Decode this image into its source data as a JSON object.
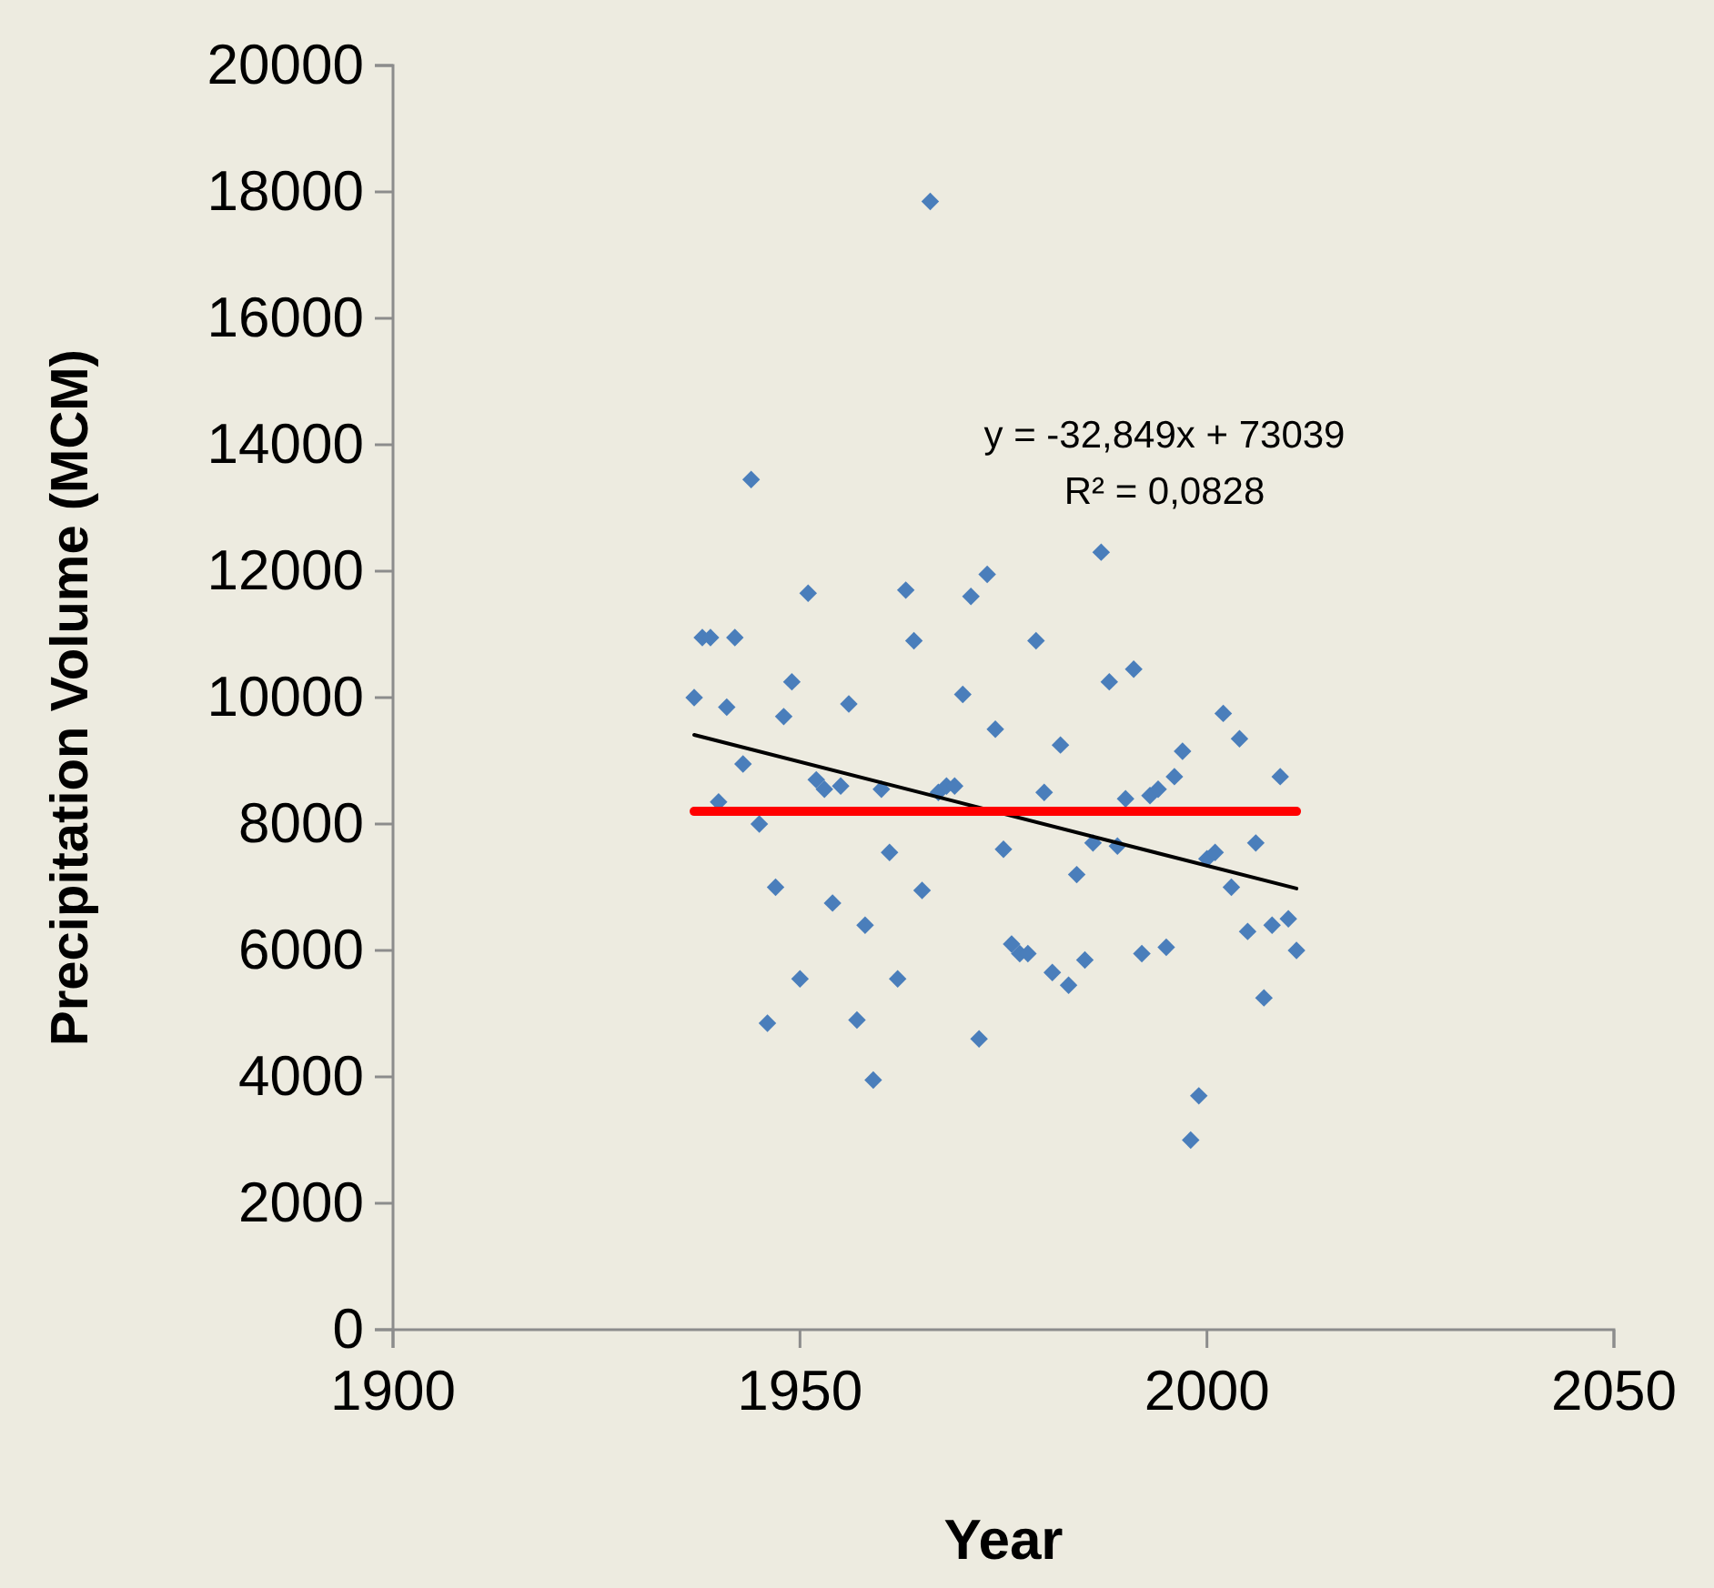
{
  "chart_data": {
    "type": "scatter",
    "xlabel": "Year",
    "ylabel": "Precipitation Volume (MCM)",
    "annotations": [
      "y = -32,849x + 73039",
      "R² = 0,0828"
    ],
    "xlim": [
      1900,
      2050
    ],
    "xticks": [
      1900,
      1950,
      2000,
      2050
    ],
    "ylim": [
      0,
      20000
    ],
    "yticks": [
      0,
      2000,
      4000,
      6000,
      8000,
      10000,
      12000,
      14000,
      16000,
      18000,
      20000
    ],
    "grid": false,
    "series": [
      {
        "type": "scatter",
        "marker": "diamond",
        "color": "#4a7ebb",
        "x": [
          1937,
          1938,
          1939,
          1940,
          1941,
          1942,
          1943,
          1944,
          1945,
          1946,
          1947,
          1948,
          1949,
          1950,
          1951,
          1952,
          1953,
          1954,
          1955,
          1956,
          1957,
          1958,
          1959,
          1960,
          1961,
          1962,
          1963,
          1964,
          1965,
          1966,
          1967,
          1968,
          1969,
          1970,
          1971,
          1972,
          1973,
          1974,
          1975,
          1976,
          1977,
          1978,
          1979,
          1980,
          1981,
          1982,
          1983,
          1984,
          1985,
          1986,
          1987,
          1988,
          1989,
          1990,
          1991,
          1992,
          1993,
          1994,
          1995,
          1996,
          1997,
          1998,
          1999,
          2000,
          2001,
          2002,
          2003,
          2004,
          2005,
          2006,
          2007,
          2008,
          2009,
          2010,
          2011
        ],
        "values": [
          10000,
          10950,
          10950,
          8350,
          9850,
          10950,
          8950,
          13450,
          8000,
          4850,
          7000,
          9700,
          10250,
          5550,
          11650,
          8700,
          8550,
          6750,
          8600,
          9900,
          4900,
          6400,
          3950,
          8550,
          7550,
          5550,
          11700,
          10900,
          6950,
          17850,
          8500,
          8600,
          8600,
          10050,
          11600,
          4600,
          11950,
          9500,
          7600,
          6100,
          5950,
          5950,
          10900,
          8500,
          5650,
          9250,
          5450,
          7200,
          5850,
          7700,
          12300,
          10250,
          7650,
          8400,
          10450,
          5950,
          8450,
          8550,
          6050,
          8750,
          9150,
          3000,
          3700,
          7450,
          7550,
          9750,
          7000,
          9350,
          6300,
          7700,
          5250,
          6400,
          8750,
          6500,
          6000
        ]
      },
      {
        "type": "line",
        "marker": "none",
        "color": "#000000",
        "x": [
          1937,
          2011
        ],
        "values": [
          9410,
          6980
        ]
      },
      {
        "type": "line",
        "marker": "none",
        "color": "#ff0000",
        "x": [
          1937,
          2011
        ],
        "values": [
          8200,
          8200
        ]
      }
    ]
  }
}
